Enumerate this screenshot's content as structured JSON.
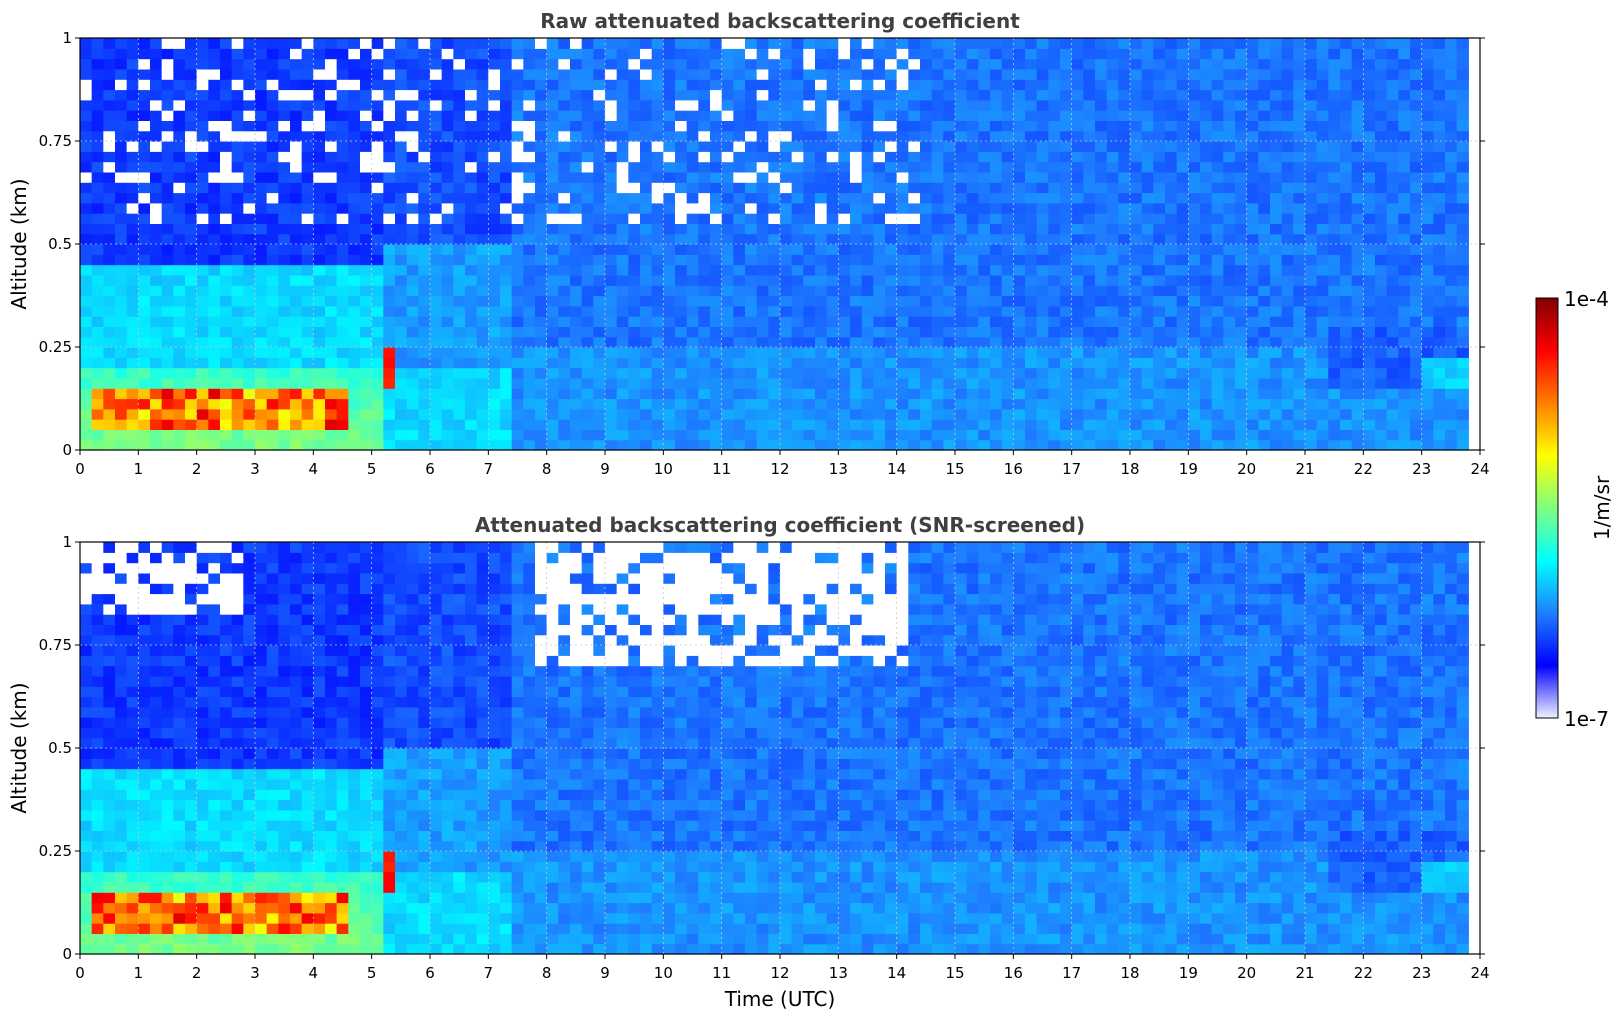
{
  "chart_data": [
    {
      "type": "heatmap",
      "id": "raw",
      "title": "Raw attenuated backscattering coefficient",
      "xlabel": "",
      "ylabel": "Altitude (km)",
      "xlim": [
        0,
        24
      ],
      "ylim": [
        0,
        1
      ],
      "xticks": [
        "0",
        "1",
        "2",
        "3",
        "4",
        "5",
        "6",
        "7",
        "8",
        "9",
        "10",
        "11",
        "12",
        "13",
        "14",
        "15",
        "16",
        "17",
        "18",
        "19",
        "20",
        "21",
        "22",
        "23",
        "24"
      ],
      "yticks": [
        "0",
        "0.25",
        "0.5",
        "0.75",
        "1"
      ],
      "data_end_hour": 23.8,
      "grid": true,
      "screened": false
    },
    {
      "type": "heatmap",
      "id": "screened",
      "title": "Attenuated backscattering coefficient (SNR-screened)",
      "xlabel": "Time (UTC)",
      "ylabel": "Altitude (km)",
      "xlim": [
        0,
        24
      ],
      "ylim": [
        0,
        1
      ],
      "xticks": [
        "0",
        "1",
        "2",
        "3",
        "4",
        "5",
        "6",
        "7",
        "8",
        "9",
        "10",
        "11",
        "12",
        "13",
        "14",
        "15",
        "16",
        "17",
        "18",
        "19",
        "20",
        "21",
        "22",
        "23",
        "24"
      ],
      "yticks": [
        "0",
        "0.25",
        "0.5",
        "0.75",
        "1"
      ],
      "data_end_hour": 23.8,
      "grid": true,
      "screened": true
    }
  ],
  "colorbar": {
    "max_label": "1e-4",
    "min_label": "1e-7",
    "unit_label": "1/m/sr",
    "scale": "log",
    "colors": [
      "#f0f0ff",
      "#0000ff",
      "#1e7fff",
      "#00ffff",
      "#7fff7f",
      "#ffff00",
      "#ff7f00",
      "#ff0000",
      "#800000"
    ]
  }
}
